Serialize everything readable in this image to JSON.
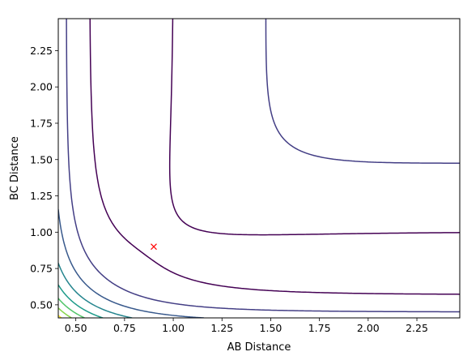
{
  "chart_data": {
    "type": "contour",
    "title": "",
    "xlabel": "AB Distance",
    "ylabel": "BC Distance",
    "xlim": [
      0.41,
      2.47
    ],
    "ylim": [
      0.41,
      2.47
    ],
    "xticks": [
      0.5,
      0.75,
      1.0,
      1.25,
      1.5,
      1.75,
      2.0,
      2.25
    ],
    "yticks": [
      0.5,
      0.75,
      1.0,
      1.25,
      1.5,
      1.75,
      2.0,
      2.25
    ],
    "xtick_labels": [
      "0.50",
      "0.75",
      "1.00",
      "1.25",
      "1.50",
      "1.75",
      "2.00",
      "2.25"
    ],
    "ytick_labels": [
      "0.50",
      "0.75",
      "1.00",
      "1.25",
      "1.50",
      "1.75",
      "2.00",
      "2.25"
    ],
    "colormap": "viridis",
    "colors": [
      "#440154",
      "#482173",
      "#433e85",
      "#38598c",
      "#2d708e",
      "#25858e",
      "#1e9b8a",
      "#2ab07f",
      "#52c569",
      "#86d549",
      "#c2df23",
      "#fde725"
    ],
    "marker": {
      "x": 0.9,
      "y": 0.9,
      "symbol": "x",
      "color": "#ff0000"
    },
    "grid": false,
    "legend": false
  }
}
